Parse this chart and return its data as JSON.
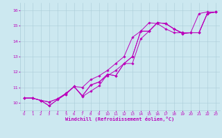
{
  "title": "",
  "xlabel": "Windchill (Refroidissement éolien,°C)",
  "ylabel": "",
  "background_color": "#cce8f0",
  "grid_color": "#aaccd8",
  "line_color": "#bb00bb",
  "xlim": [
    -0.5,
    23.5
  ],
  "ylim": [
    9.5,
    16.5
  ],
  "xticks": [
    0,
    1,
    2,
    3,
    4,
    5,
    6,
    7,
    8,
    9,
    10,
    11,
    12,
    13,
    14,
    15,
    16,
    17,
    18,
    19,
    20,
    21,
    22,
    23
  ],
  "yticks": [
    10,
    11,
    12,
    13,
    14,
    15,
    16
  ],
  "series": [
    [
      10.3,
      10.3,
      10.15,
      9.8,
      10.2,
      10.55,
      11.05,
      10.4,
      10.75,
      11.1,
      11.85,
      11.75,
      12.55,
      13.0,
      14.65,
      14.65,
      15.2,
      15.15,
      14.8,
      14.5,
      14.55,
      14.55,
      15.8,
      15.9
    ],
    [
      10.3,
      10.3,
      10.15,
      10.05,
      10.25,
      10.6,
      11.05,
      10.45,
      11.15,
      11.35,
      11.75,
      12.1,
      12.55,
      12.55,
      14.15,
      14.65,
      15.2,
      15.15,
      14.8,
      14.55,
      14.55,
      14.55,
      15.8,
      15.9
    ],
    [
      10.3,
      10.3,
      10.15,
      9.8,
      10.2,
      10.55,
      11.05,
      11.0,
      11.5,
      11.75,
      12.1,
      12.55,
      13.0,
      14.25,
      14.65,
      15.2,
      15.15,
      14.8,
      14.55,
      14.55,
      14.55,
      15.8,
      15.9,
      15.9
    ],
    [
      10.3,
      10.3,
      10.15,
      10.05,
      10.25,
      10.6,
      11.05,
      10.45,
      11.15,
      11.35,
      11.85,
      11.75,
      12.55,
      13.0,
      14.65,
      14.65,
      15.2,
      15.15,
      14.8,
      14.5,
      14.55,
      14.55,
      15.8,
      15.9
    ]
  ],
  "x_vals": [
    0,
    1,
    2,
    3,
    4,
    5,
    6,
    7,
    8,
    9,
    10,
    11,
    12,
    13,
    14,
    15,
    16,
    17,
    18,
    19,
    20,
    21,
    22,
    23
  ]
}
